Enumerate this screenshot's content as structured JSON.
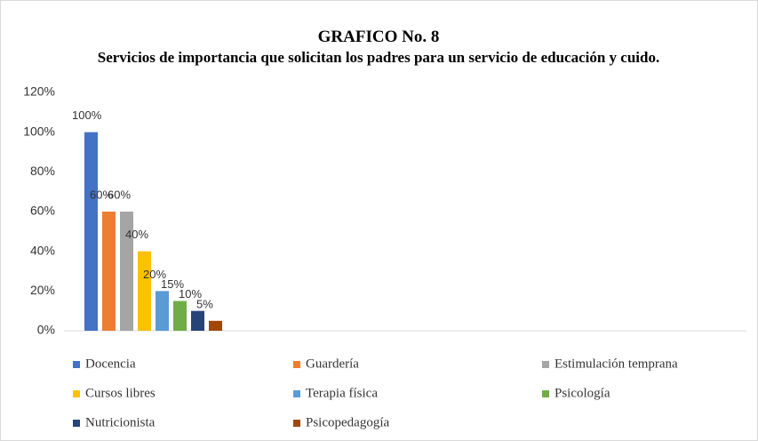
{
  "chart_data": {
    "type": "bar",
    "title": "GRAFICO No. 8",
    "subtitle": "Servicios de importancia que solicitan los padres para un servicio de educación y cuido.",
    "categories": [
      null
    ],
    "series": [
      {
        "name": "Docencia",
        "color": "#4472c4",
        "values": [
          100
        ],
        "value_labels": [
          "100%"
        ]
      },
      {
        "name": "Guardería",
        "color": "#ed7d31",
        "values": [
          60
        ],
        "value_labels": [
          "60%"
        ]
      },
      {
        "name": "Estimulación temprana",
        "color": "#a5a5a5",
        "values": [
          60
        ],
        "value_labels": [
          "60%"
        ]
      },
      {
        "name": "Cursos libres",
        "color": "#ffc000",
        "values": [
          40
        ],
        "value_labels": [
          "40%"
        ]
      },
      {
        "name": "Terapia física",
        "color": "#5b9bd5",
        "values": [
          20
        ],
        "value_labels": [
          "20%"
        ]
      },
      {
        "name": "Psicología",
        "color": "#70ad47",
        "values": [
          15
        ],
        "value_labels": [
          "15%"
        ]
      },
      {
        "name": "Nutricionista",
        "color": "#264478",
        "values": [
          10
        ],
        "value_labels": [
          "10%"
        ]
      },
      {
        "name": "Psicopedagogía",
        "color": "#9e480e",
        "values": [
          5
        ],
        "value_labels": [
          "5%"
        ]
      }
    ],
    "ylim": [
      0,
      120
    ],
    "yticks": [
      {
        "value": 0,
        "label": "0%"
      },
      {
        "value": 20,
        "label": "20%"
      },
      {
        "value": 40,
        "label": "40%"
      },
      {
        "value": 60,
        "label": "60%"
      },
      {
        "value": 80,
        "label": "80%"
      },
      {
        "value": 100,
        "label": "100%"
      },
      {
        "value": 120,
        "label": "120%"
      }
    ],
    "grid": false,
    "legend": "bottom"
  }
}
